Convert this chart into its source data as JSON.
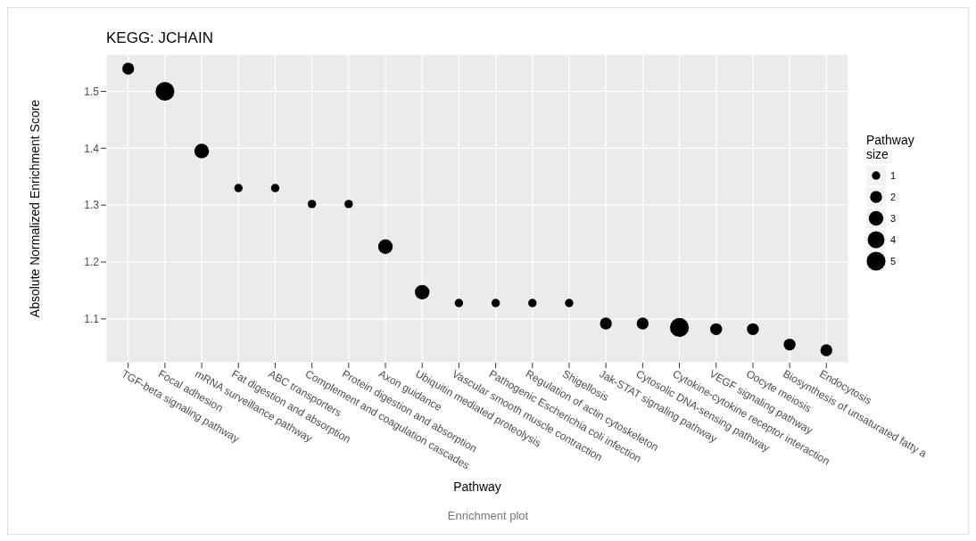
{
  "chart_data": {
    "type": "bubble",
    "title": "KEGG: JCHAIN",
    "xlabel": "Pathway",
    "ylabel": "Absolute Normalized Enrichment Score",
    "legend_title": "Pathway size",
    "annotations": [
      "Enrichment plot"
    ],
    "categories": [
      "TGF-beta signaling pathway",
      "Focal adhesion",
      "mRNA surveillance pathway",
      "Fat digestion and absorption",
      "ABC transporters",
      "Complement and coagulation cascades",
      "Protein digestion and absorption",
      "Axon guidance",
      "Ubiquitin mediated proteolysis",
      "Vascular smooth muscle contraction",
      "Pathogenic Escherichia coli infection",
      "Regulation of actin cytoskeleton",
      "Shigellosis",
      "Jak-STAT signaling pathway",
      "Cytosolic DNA-sensing pathway",
      "Cytokine-cytokine receptor interaction",
      "VEGF signaling pathway",
      "Oocyte meiosis",
      "Biosynthesis of unsaturated fatty a",
      "Endocytosis"
    ],
    "values": [
      1.54,
      1.5,
      1.395,
      1.33,
      1.33,
      1.302,
      1.302,
      1.227,
      1.147,
      1.128,
      1.128,
      1.128,
      1.128,
      1.092,
      1.092,
      1.085,
      1.082,
      1.082,
      1.055,
      1.045
    ],
    "sizes": [
      2,
      5,
      3,
      1,
      1,
      1,
      1,
      3,
      3,
      1,
      1,
      1,
      1,
      2,
      2,
      5,
      2,
      2,
      2,
      2
    ],
    "size_legend": [
      1,
      2,
      3,
      4,
      5
    ],
    "color": "#000000",
    "marker": "circle",
    "ylim": [
      1.023,
      1.565
    ],
    "yticks": [
      1.1,
      1.2,
      1.3,
      1.4,
      1.5
    ],
    "grid": true
  }
}
